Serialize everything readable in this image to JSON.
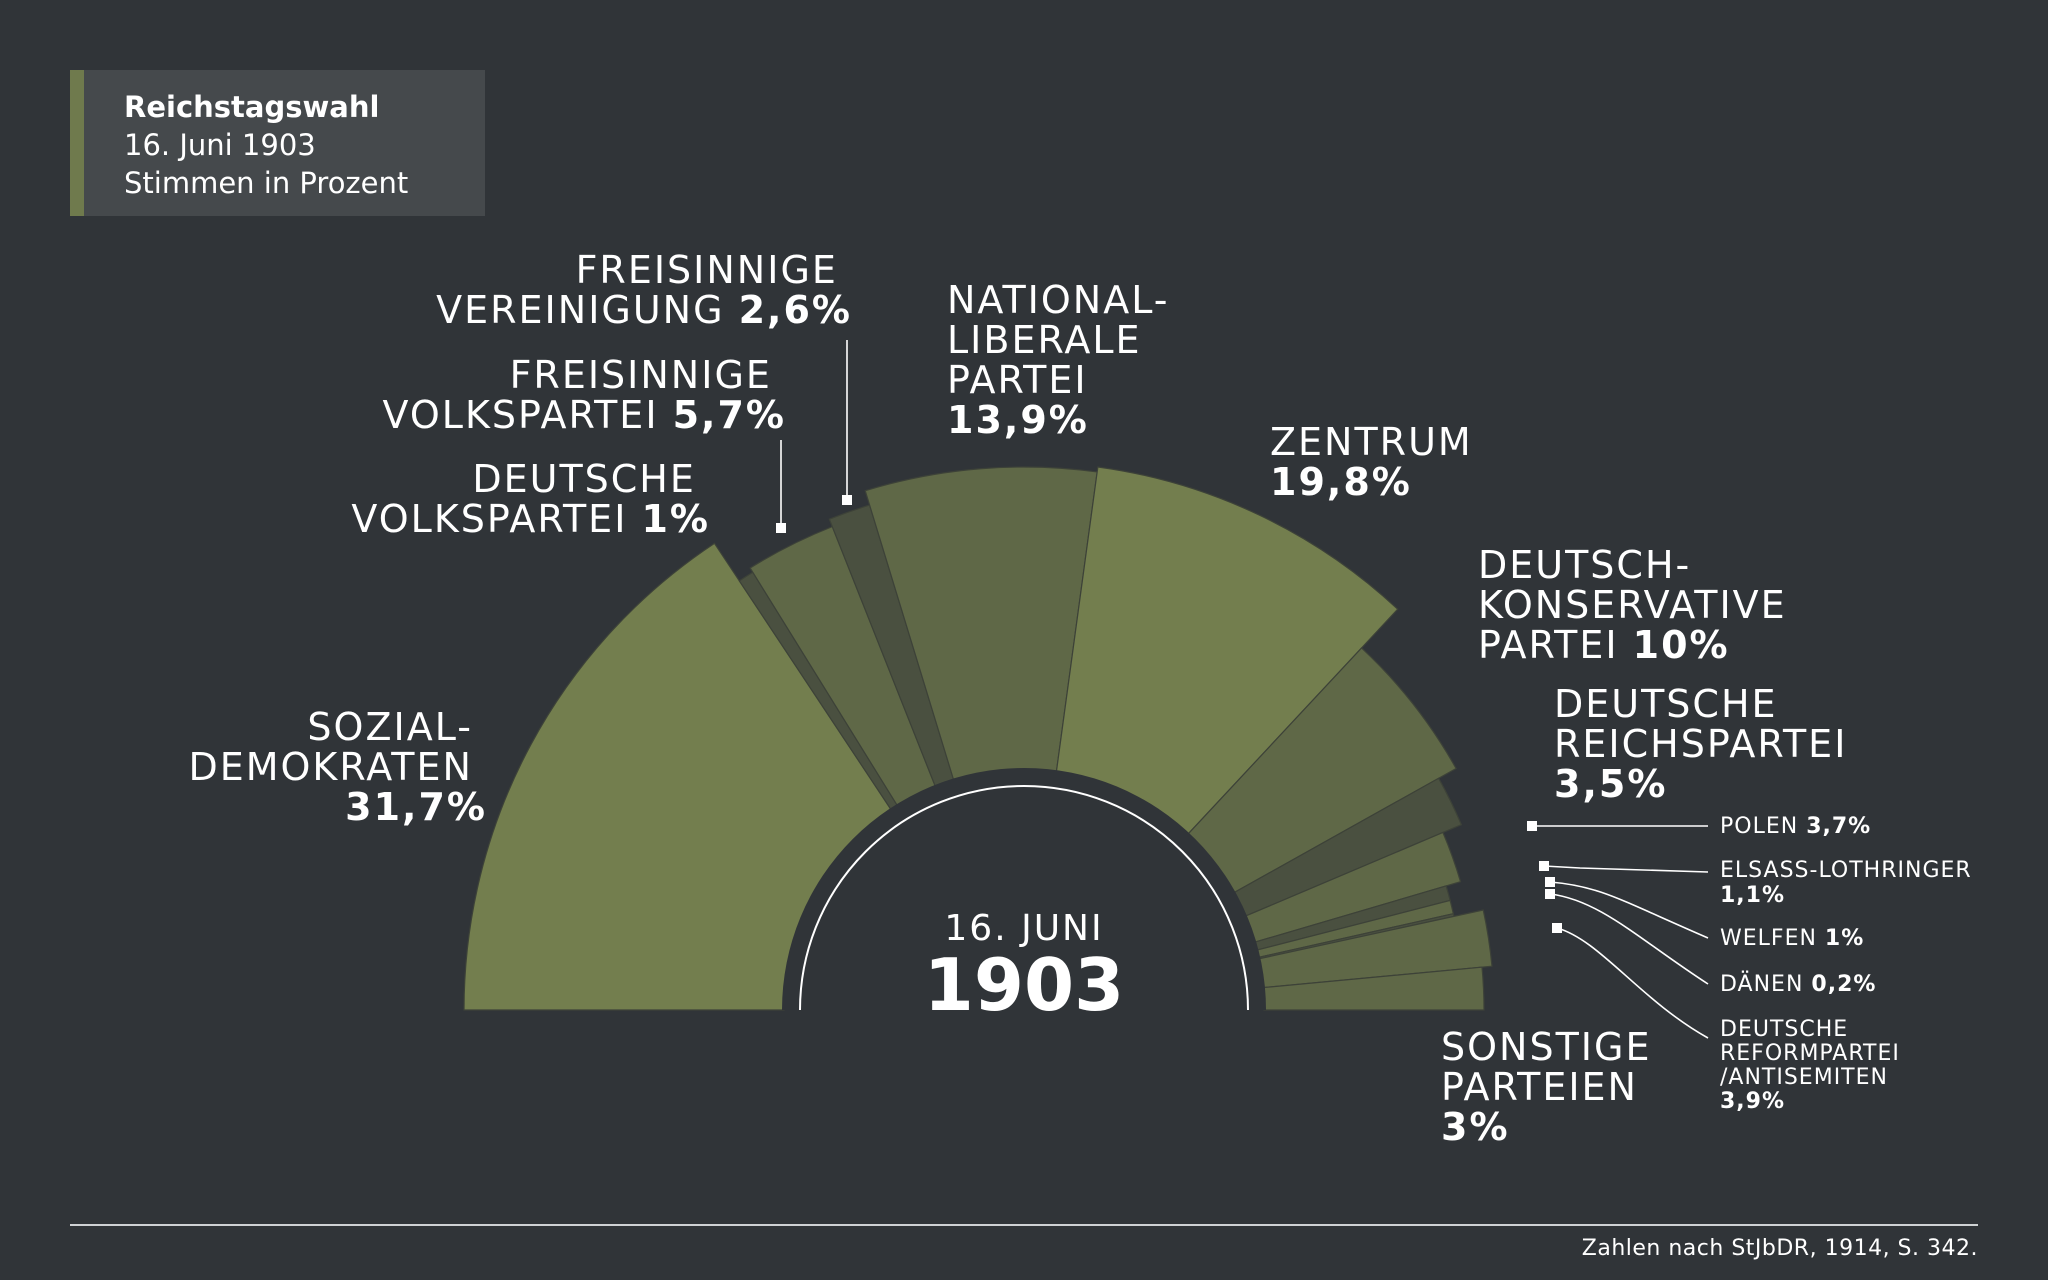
{
  "header": {
    "title": "Reichstagswahl",
    "date": "16. Juni 1903",
    "subtitle": "Stimmen in Prozent"
  },
  "center": {
    "date": "16. JUNI",
    "year": "1903"
  },
  "source": "Zahlen nach StJbDR, 1914, S. 342.",
  "colors": {
    "background": "#303438",
    "box": "#45494c",
    "accent": "#6f7a4d",
    "slice_light": "#737e4e",
    "slice_mid": "#5f6847",
    "slice_dark": "#4a5040"
  },
  "chart_data": {
    "type": "pie",
    "shape": "semicircle",
    "order": "left-to-right",
    "unit": "%",
    "slices": [
      {
        "name": "SOZIAL-\nDEMOKRATEN",
        "value": 31.7,
        "label": "31,7%"
      },
      {
        "name": "DEUTSCHE VOLKSPARTEI",
        "value": 1.0,
        "label": "1%"
      },
      {
        "name": "FREISINNIGE VOLKSPARTEI",
        "value": 5.7,
        "label": "5,7%"
      },
      {
        "name": "FREISINNIGE VEREINIGUNG",
        "value": 2.6,
        "label": "2,6%"
      },
      {
        "name": "NATIONAL-LIBERALE PARTEI",
        "value": 13.9,
        "label": "13,9%"
      },
      {
        "name": "ZENTRUM",
        "value": 19.8,
        "label": "19,8%"
      },
      {
        "name": "DEUTSCH-KONSERVATIVE PARTEI",
        "value": 10.0,
        "label": "10%"
      },
      {
        "name": "DEUTSCHE REICHSPARTEI",
        "value": 3.5,
        "label": "3,5%"
      },
      {
        "name": "POLEN",
        "value": 3.7,
        "label": "3,7%"
      },
      {
        "name": "ELSASS-LOTHRINGER",
        "value": 1.1,
        "label": "1,1%"
      },
      {
        "name": "WELFEN",
        "value": 1.0,
        "label": "1%"
      },
      {
        "name": "DÄNEN",
        "value": 0.2,
        "label": "0,2%"
      },
      {
        "name": "DEUTSCHE REFORMPARTEI /ANTISEMITEN",
        "value": 3.9,
        "label": "3,9%"
      },
      {
        "name": "SONSTIGE PARTEIEN",
        "value": 3.0,
        "label": "3%"
      }
    ]
  }
}
